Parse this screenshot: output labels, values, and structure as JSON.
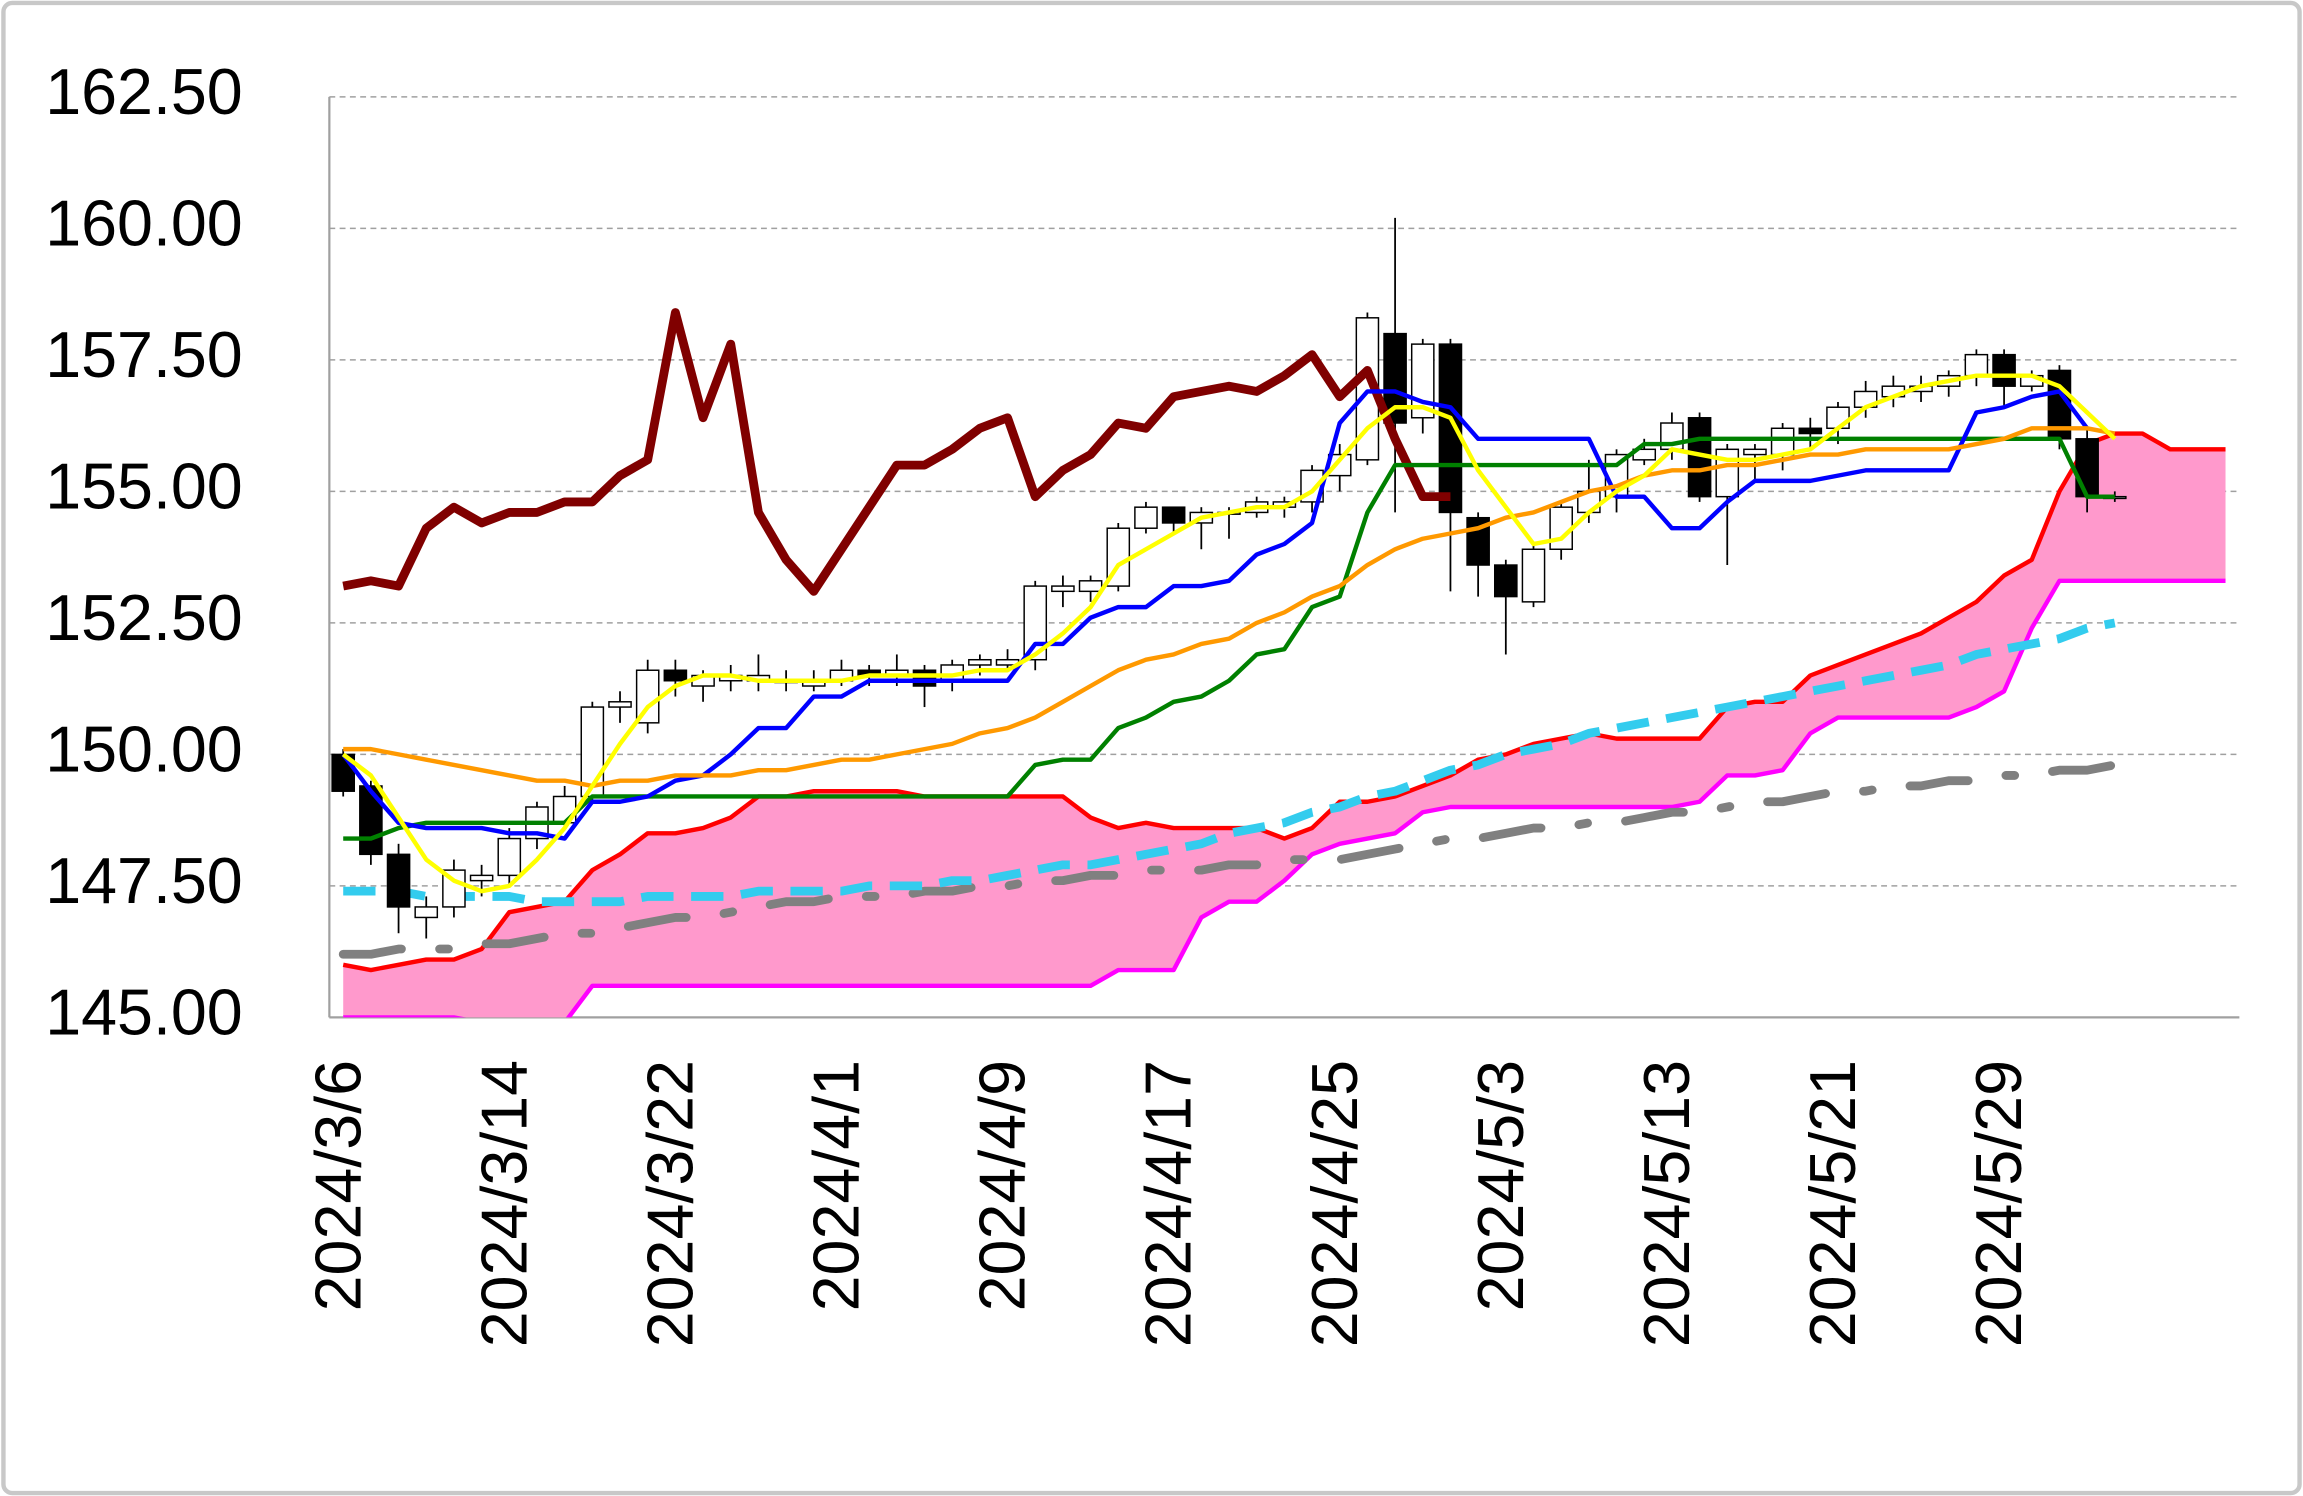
{
  "chart_data": {
    "type": "candlestick",
    "categories": [
      "2024/3/6",
      null,
      null,
      null,
      null,
      null,
      "2024/3/14",
      null,
      null,
      null,
      null,
      null,
      "2024/3/22",
      null,
      null,
      null,
      null,
      null,
      "2024/4/1",
      null,
      null,
      null,
      null,
      null,
      "2024/4/9",
      null,
      null,
      null,
      null,
      null,
      "2024/4/17",
      null,
      null,
      null,
      null,
      null,
      "2024/4/25",
      null,
      null,
      null,
      null,
      null,
      "2024/5/3",
      null,
      null,
      null,
      null,
      null,
      "2024/5/13",
      null,
      null,
      null,
      null,
      null,
      "2024/5/21",
      null,
      null,
      null,
      null,
      null,
      "2024/5/29",
      null,
      null,
      null,
      null,
      null,
      null,
      null,
      null
    ],
    "open": [
      150.0,
      149.4,
      148.1,
      146.9,
      147.1,
      147.6,
      147.7,
      148.4,
      148.7,
      149.2,
      150.9,
      150.6,
      151.6,
      151.3,
      151.4,
      151.4,
      151.4,
      151.3,
      151.4,
      151.6,
      151.5,
      151.6,
      151.4,
      151.7,
      151.7,
      151.8,
      153.1,
      153.1,
      153.2,
      154.3,
      154.7,
      154.4,
      154.6,
      154.6,
      154.7,
      154.8,
      155.3,
      155.6,
      158.0,
      156.4,
      157.8,
      154.5,
      153.6,
      152.9,
      153.9,
      154.6,
      154.9,
      155.6,
      155.8,
      156.4,
      154.9,
      155.7,
      155.7,
      156.2,
      156.2,
      156.6,
      156.8,
      156.9,
      157.0,
      157.2,
      157.6,
      157.0,
      157.3,
      156.0,
      154.9,
      null,
      null,
      null,
      null
    ],
    "high": [
      150.1,
      149.5,
      148.3,
      147.3,
      148.0,
      147.9,
      148.6,
      149.1,
      149.4,
      151.0,
      151.2,
      151.8,
      151.8,
      151.6,
      151.7,
      151.9,
      151.6,
      151.6,
      151.8,
      151.7,
      151.9,
      151.7,
      151.8,
      151.9,
      152.0,
      153.3,
      153.4,
      153.4,
      154.4,
      154.8,
      154.7,
      154.7,
      154.7,
      154.9,
      154.9,
      155.5,
      155.9,
      158.4,
      160.2,
      157.9,
      157.9,
      154.6,
      153.7,
      154.0,
      154.8,
      155.6,
      155.8,
      156.0,
      156.5,
      156.5,
      155.9,
      155.9,
      156.3,
      156.4,
      156.7,
      157.1,
      157.2,
      157.2,
      157.3,
      157.7,
      157.7,
      157.3,
      157.4,
      156.2,
      155.0,
      null,
      null,
      null,
      null
    ],
    "low": [
      149.2,
      147.9,
      146.6,
      146.5,
      146.9,
      147.3,
      147.5,
      148.2,
      148.6,
      149.1,
      150.6,
      150.4,
      151.1,
      151.0,
      151.2,
      151.2,
      151.2,
      151.2,
      151.3,
      151.3,
      151.3,
      150.9,
      151.2,
      151.5,
      151.6,
      151.6,
      152.8,
      152.9,
      153.1,
      154.2,
      154.2,
      153.9,
      154.1,
      154.5,
      154.5,
      154.6,
      155.0,
      155.5,
      154.6,
      156.1,
      153.1,
      153.0,
      151.9,
      152.8,
      153.7,
      154.4,
      154.6,
      155.5,
      155.6,
      154.8,
      153.6,
      155.2,
      155.4,
      155.8,
      155.9,
      156.4,
      156.6,
      156.7,
      156.8,
      157.0,
      156.6,
      156.9,
      155.8,
      154.6,
      154.8,
      null,
      null,
      null,
      null
    ],
    "close": [
      149.3,
      148.1,
      147.1,
      147.1,
      147.8,
      147.7,
      148.4,
      149.0,
      149.2,
      150.9,
      151.0,
      151.6,
      151.4,
      151.5,
      151.5,
      151.5,
      151.4,
      151.4,
      151.6,
      151.5,
      151.6,
      151.3,
      151.7,
      151.8,
      151.8,
      153.2,
      153.2,
      153.3,
      154.3,
      154.7,
      154.4,
      154.6,
      154.6,
      154.8,
      154.8,
      155.4,
      155.7,
      158.3,
      156.3,
      157.8,
      154.6,
      153.6,
      153.0,
      153.9,
      154.7,
      155.0,
      155.7,
      155.8,
      156.3,
      154.9,
      155.8,
      155.8,
      156.2,
      156.1,
      156.6,
      156.9,
      157.0,
      157.0,
      157.2,
      157.6,
      157.0,
      157.2,
      156.0,
      154.9,
      154.9,
      null,
      null,
      null,
      null
    ],
    "cloud_color": "#ff99cc",
    "lines": [
      {
        "color": "#ff0000",
        "line_style": "solid",
        "values": [
          146.0,
          145.9,
          146.0,
          146.1,
          146.1,
          146.3,
          147.0,
          147.1,
          147.2,
          147.8,
          148.1,
          148.5,
          148.5,
          148.6,
          148.8,
          149.2,
          149.2,
          149.3,
          149.3,
          149.3,
          149.3,
          149.2,
          149.2,
          149.2,
          149.2,
          149.2,
          149.2,
          148.8,
          148.6,
          148.7,
          148.6,
          148.6,
          148.6,
          148.6,
          148.4,
          148.6,
          149.1,
          149.1,
          149.2,
          149.4,
          149.6,
          149.9,
          150.0,
          150.2,
          150.3,
          150.4,
          150.3,
          150.3,
          150.3,
          150.3,
          150.9,
          151.0,
          151.0,
          151.5,
          151.7,
          151.9,
          152.1,
          152.3,
          152.6,
          152.9,
          153.4,
          153.7,
          155.0,
          155.9,
          156.1,
          156.1,
          155.8,
          155.8,
          155.8
        ]
      },
      {
        "color": "#ff00ff",
        "line_style": "solid",
        "values": [
          145.0,
          145.0,
          145.0,
          145.0,
          145.0,
          144.9,
          144.9,
          144.9,
          144.9,
          145.6,
          145.6,
          145.6,
          145.6,
          145.6,
          145.6,
          145.6,
          145.6,
          145.6,
          145.6,
          145.6,
          145.6,
          145.6,
          145.6,
          145.6,
          145.6,
          145.6,
          145.6,
          145.6,
          145.9,
          145.9,
          145.9,
          146.9,
          147.2,
          147.2,
          147.6,
          148.1,
          148.3,
          148.4,
          148.5,
          148.9,
          149.0,
          149.0,
          149.0,
          149.0,
          149.0,
          149.0,
          149.0,
          149.0,
          149.0,
          149.1,
          149.6,
          149.6,
          149.7,
          150.4,
          150.7,
          150.7,
          150.7,
          150.7,
          150.7,
          150.9,
          151.2,
          152.4,
          153.3,
          153.3,
          153.3,
          153.3,
          153.3,
          153.3,
          153.3
        ]
      },
      {
        "color": "#808080",
        "line_style": "dash-dot",
        "values": [
          146.2,
          146.2,
          146.3,
          146.3,
          146.3,
          146.4,
          146.4,
          146.5,
          146.6,
          146.6,
          146.7,
          146.8,
          146.9,
          146.9,
          147.0,
          147.1,
          147.2,
          147.2,
          147.3,
          147.3,
          147.3,
          147.4,
          147.4,
          147.5,
          147.5,
          147.6,
          147.6,
          147.7,
          147.7,
          147.8,
          147.8,
          147.8,
          147.9,
          147.9,
          148.0,
          148.0,
          148.0,
          148.1,
          148.2,
          148.3,
          148.4,
          148.4,
          148.5,
          148.6,
          148.6,
          148.7,
          148.7,
          148.8,
          148.9,
          148.9,
          149.0,
          149.1,
          149.1,
          149.2,
          149.3,
          149.3,
          149.4,
          149.4,
          149.5,
          149.5,
          149.6,
          149.6,
          149.7,
          149.7,
          149.8,
          null,
          null,
          null,
          null
        ]
      },
      {
        "color": "#33ccee",
        "line_style": "dashed",
        "values": [
          147.4,
          147.4,
          147.4,
          147.3,
          147.3,
          147.3,
          147.3,
          147.2,
          147.2,
          147.2,
          147.2,
          147.3,
          147.3,
          147.3,
          147.3,
          147.4,
          147.4,
          147.4,
          147.4,
          147.5,
          147.5,
          147.5,
          147.6,
          147.6,
          147.7,
          147.8,
          147.9,
          147.9,
          148.0,
          148.1,
          148.2,
          148.3,
          148.5,
          148.6,
          148.7,
          148.9,
          149.0,
          149.2,
          149.3,
          149.5,
          149.7,
          149.8,
          150.0,
          150.1,
          150.2,
          150.4,
          150.5,
          150.6,
          150.7,
          150.8,
          150.9,
          151.0,
          151.1,
          151.2,
          151.3,
          151.4,
          151.5,
          151.6,
          151.7,
          151.9,
          152.0,
          152.1,
          152.2,
          152.4,
          152.5,
          null,
          null,
          null,
          null
        ]
      },
      {
        "color": "#800000",
        "line_style": "thick",
        "values": [
          153.2,
          153.3,
          153.2,
          154.3,
          154.7,
          154.4,
          154.6,
          154.6,
          154.8,
          154.8,
          155.3,
          155.6,
          158.4,
          156.4,
          157.8,
          154.6,
          153.7,
          153.1,
          153.9,
          154.7,
          155.5,
          155.5,
          155.8,
          156.2,
          156.4,
          154.9,
          155.4,
          155.7,
          156.3,
          156.2,
          156.8,
          156.9,
          157.0,
          156.9,
          157.2,
          157.6,
          156.8,
          157.3,
          156.0,
          154.9,
          154.9,
          null,
          null,
          null,
          null,
          null,
          null,
          null,
          null,
          null,
          null,
          null,
          null,
          null,
          null,
          null,
          null,
          null,
          null,
          null,
          null,
          null,
          null,
          null,
          null,
          null,
          null,
          null,
          null
        ]
      },
      {
        "color": "#008000",
        "line_style": "solid",
        "values": [
          148.4,
          148.4,
          148.6,
          148.7,
          148.7,
          148.7,
          148.7,
          148.7,
          148.7,
          149.2,
          149.2,
          149.2,
          149.2,
          149.2,
          149.2,
          149.2,
          149.2,
          149.2,
          149.2,
          149.2,
          149.2,
          149.2,
          149.2,
          149.2,
          149.2,
          149.8,
          149.9,
          149.9,
          150.5,
          150.7,
          151.0,
          151.1,
          151.4,
          151.9,
          152.0,
          152.8,
          153.0,
          154.6,
          155.5,
          155.5,
          155.5,
          155.5,
          155.5,
          155.5,
          155.5,
          155.5,
          155.5,
          155.9,
          155.9,
          156.0,
          156.0,
          156.0,
          156.0,
          156.0,
          156.0,
          156.0,
          156.0,
          156.0,
          156.0,
          156.0,
          156.0,
          156.0,
          156.0,
          154.9,
          154.9,
          null,
          null,
          null,
          null
        ]
      },
      {
        "color": "#0000ff",
        "line_style": "solid",
        "values": [
          150.0,
          149.3,
          148.7,
          148.6,
          148.6,
          148.6,
          148.5,
          148.5,
          148.4,
          149.1,
          149.1,
          149.2,
          149.5,
          149.6,
          150.0,
          150.5,
          150.5,
          151.1,
          151.1,
          151.4,
          151.4,
          151.4,
          151.4,
          151.4,
          151.4,
          152.1,
          152.1,
          152.6,
          152.8,
          152.8,
          153.2,
          153.2,
          153.3,
          153.8,
          154.0,
          154.4,
          156.3,
          156.9,
          156.9,
          156.7,
          156.6,
          156.0,
          156.0,
          156.0,
          156.0,
          156.0,
          154.9,
          154.9,
          154.3,
          154.3,
          154.8,
          155.2,
          155.2,
          155.2,
          155.3,
          155.4,
          155.4,
          155.4,
          155.4,
          156.5,
          156.6,
          156.8,
          156.9,
          156.2,
          null,
          null,
          null,
          null,
          null
        ]
      },
      {
        "color": "#ff9900",
        "line_style": "solid",
        "values": [
          150.1,
          150.1,
          150.0,
          149.9,
          149.8,
          149.7,
          149.6,
          149.5,
          149.5,
          149.4,
          149.5,
          149.5,
          149.6,
          149.6,
          149.6,
          149.7,
          149.7,
          149.8,
          149.9,
          149.9,
          150.0,
          150.1,
          150.2,
          150.4,
          150.5,
          150.7,
          151.0,
          151.3,
          151.6,
          151.8,
          151.9,
          152.1,
          152.2,
          152.5,
          152.7,
          153.0,
          153.2,
          153.6,
          153.9,
          154.1,
          154.2,
          154.3,
          154.5,
          154.6,
          154.8,
          155.0,
          155.1,
          155.3,
          155.4,
          155.4,
          155.5,
          155.5,
          155.6,
          155.7,
          155.7,
          155.8,
          155.8,
          155.8,
          155.8,
          155.9,
          156.0,
          156.2,
          156.2,
          156.2,
          156.1,
          null,
          null,
          null,
          null
        ]
      },
      {
        "color": "#ffff00",
        "line_style": "solid",
        "values": [
          150.0,
          149.6,
          148.8,
          148.0,
          147.6,
          147.4,
          147.5,
          148.0,
          148.6,
          149.4,
          150.2,
          150.9,
          151.3,
          151.5,
          151.5,
          151.4,
          151.4,
          151.4,
          151.4,
          151.5,
          151.5,
          151.5,
          151.5,
          151.6,
          151.6,
          151.9,
          152.3,
          152.8,
          153.6,
          153.9,
          154.2,
          154.5,
          154.6,
          154.7,
          154.7,
          155.0,
          155.6,
          156.2,
          156.6,
          156.6,
          156.4,
          155.4,
          154.7,
          154.0,
          154.1,
          154.6,
          155.0,
          155.3,
          155.8,
          155.7,
          155.6,
          155.6,
          155.7,
          155.8,
          156.2,
          156.6,
          156.8,
          157.0,
          157.1,
          157.2,
          157.2,
          157.2,
          157.0,
          156.5,
          156.0,
          null,
          null,
          null,
          null
        ]
      }
    ],
    "ylim": [
      145,
      162.5
    ],
    "yticks": [
      {
        "value": 145,
        "label": "145.00"
      },
      {
        "value": 147.5,
        "label": "147.50"
      },
      {
        "value": 150,
        "label": "150.00"
      },
      {
        "value": 152.5,
        "label": "152.50"
      },
      {
        "value": 155,
        "label": "155.00"
      },
      {
        "value": 157.5,
        "label": "157.50"
      },
      {
        "value": 160,
        "label": "160.00"
      },
      {
        "value": 162.5,
        "label": "162.50"
      }
    ],
    "grid": true
  }
}
